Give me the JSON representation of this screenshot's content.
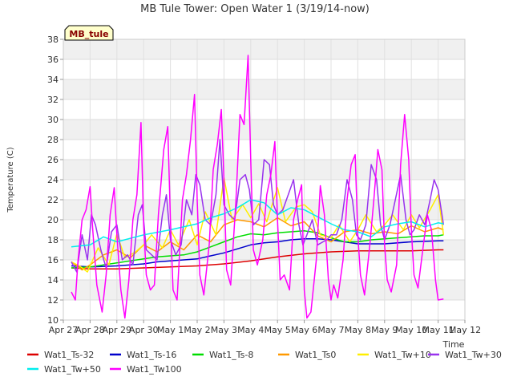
{
  "chart_data": {
    "type": "line",
    "title": "MB Tule Tower: Open Water 1 (3/19/14-now)",
    "site_label": "MB_tule",
    "xlabel": "Time",
    "ylabel": "Temperature (C)",
    "xlim": [
      0,
      15
    ],
    "ylim": [
      10,
      38
    ],
    "x_ticks": [
      {
        "v": 0,
        "label": "Apr 27"
      },
      {
        "v": 1,
        "label": "Apr 28"
      },
      {
        "v": 2,
        "label": "Apr 29"
      },
      {
        "v": 3,
        "label": "Apr 30"
      },
      {
        "v": 4,
        "label": "May 1"
      },
      {
        "v": 5,
        "label": "May 2"
      },
      {
        "v": 6,
        "label": "May 3"
      },
      {
        "v": 7,
        "label": "May 4"
      },
      {
        "v": 8,
        "label": "May 5"
      },
      {
        "v": 9,
        "label": "May 6"
      },
      {
        "v": 10,
        "label": "May 7"
      },
      {
        "v": 11,
        "label": "May 8"
      },
      {
        "v": 12,
        "label": "May 9"
      },
      {
        "v": 13,
        "label": "May 10"
      },
      {
        "v": 14,
        "label": "May 11"
      },
      {
        "v": 15,
        "label": "May 12"
      }
    ],
    "y_ticks": [
      10,
      12,
      14,
      16,
      18,
      20,
      22,
      24,
      26,
      28,
      30,
      32,
      34,
      36,
      38
    ],
    "series": [
      {
        "name": "Wat1_Ts-32",
        "color": "#dd0000",
        "x": [
          0.3,
          1,
          2,
          3,
          4,
          5,
          6,
          7,
          8,
          9,
          10,
          11,
          12,
          13,
          14,
          14.2
        ],
        "y": [
          15.2,
          15.1,
          15.1,
          15.2,
          15.3,
          15.4,
          15.6,
          15.9,
          16.3,
          16.6,
          16.8,
          16.9,
          16.9,
          16.9,
          17.0,
          17.0
        ]
      },
      {
        "name": "Wat1_Ts-16",
        "color": "#0000cc",
        "x": [
          0.3,
          1,
          2,
          3,
          3.5,
          4,
          4.5,
          5,
          5.5,
          6,
          6.5,
          7,
          7.5,
          8,
          8.5,
          9,
          9.5,
          10,
          10.5,
          11,
          12,
          13,
          14,
          14.2
        ],
        "y": [
          15.4,
          15.3,
          15.4,
          15.6,
          15.8,
          15.9,
          16.0,
          16.1,
          16.4,
          16.7,
          17.1,
          17.5,
          17.7,
          17.8,
          18.0,
          18.1,
          18.1,
          18.0,
          17.8,
          17.6,
          17.6,
          17.8,
          17.9,
          17.9
        ]
      },
      {
        "name": "Wat1_Ts-8",
        "color": "#00dd00",
        "x": [
          0.3,
          1,
          1.5,
          2,
          2.5,
          3,
          3.5,
          4,
          4.5,
          5,
          5.5,
          6,
          6.5,
          7,
          7.5,
          8,
          8.5,
          9,
          9.5,
          10,
          10.5,
          11,
          11.5,
          12,
          12.5,
          13,
          13.5,
          14,
          14.2
        ],
        "y": [
          15.2,
          15.3,
          15.5,
          15.7,
          15.9,
          16.1,
          16.3,
          16.4,
          16.5,
          16.8,
          17.3,
          17.8,
          18.3,
          18.6,
          18.5,
          18.7,
          18.8,
          18.9,
          18.7,
          18.2,
          17.8,
          17.8,
          18.0,
          18.1,
          18.2,
          18.3,
          18.4,
          18.4,
          18.5
        ]
      },
      {
        "name": "Wat1_Ts0",
        "color": "#ff9900",
        "x": [
          0.3,
          0.7,
          1,
          1.5,
          2,
          2.5,
          3,
          3.5,
          4,
          4.5,
          5,
          5.5,
          6,
          6.5,
          7,
          7.5,
          8,
          8.5,
          9,
          9.5,
          10,
          10.5,
          11,
          11.5,
          12,
          12.5,
          13,
          13.5,
          14,
          14.2
        ],
        "y": [
          15.8,
          15.0,
          15.5,
          16.5,
          17.0,
          16.2,
          17.5,
          16.8,
          17.8,
          17.0,
          18.5,
          17.8,
          19.5,
          20.0,
          19.8,
          19.3,
          20.2,
          19.4,
          19.8,
          18.4,
          17.8,
          18.8,
          19.0,
          18.6,
          18.8,
          18.6,
          19.4,
          18.8,
          19.2,
          19.0
        ]
      },
      {
        "name": "Wat1_Tw+10",
        "color": "#ffee00",
        "x": [
          0.3,
          0.6,
          0.9,
          1.3,
          1.7,
          2,
          2.3,
          2.7,
          3,
          3.3,
          3.7,
          4,
          4.3,
          4.7,
          5,
          5.3,
          5.7,
          6,
          6.3,
          6.7,
          7,
          7.3,
          7.6,
          8,
          8.3,
          8.7,
          9,
          9.3,
          9.6,
          10,
          10.3,
          10.7,
          11,
          11.3,
          11.7,
          12,
          12.3,
          12.7,
          13,
          13.3,
          13.7,
          14,
          14.2
        ],
        "y": [
          15.8,
          15.4,
          14.8,
          17.2,
          15.5,
          18.6,
          16.2,
          16.8,
          17.5,
          18.5,
          17.2,
          19.0,
          17.5,
          20.0,
          17.5,
          20.8,
          18.5,
          24.2,
          20.0,
          21.5,
          20.2,
          21.6,
          19.8,
          23.2,
          19.8,
          21.3,
          21.5,
          20.8,
          18.5,
          18.2,
          19.5,
          17.8,
          19.0,
          20.5,
          18.8,
          19.5,
          20.5,
          19.0,
          20.5,
          19.2,
          21.0,
          22.5,
          18.5
        ]
      },
      {
        "name": "Wat1_Tw+30",
        "color": "#9933ee",
        "x": [
          0.3,
          0.5,
          0.7,
          0.9,
          1.05,
          1.2,
          1.4,
          1.6,
          1.8,
          2.0,
          2.2,
          2.4,
          2.6,
          2.8,
          2.95,
          3.1,
          3.3,
          3.5,
          3.7,
          3.85,
          4.0,
          4.2,
          4.4,
          4.6,
          4.8,
          4.95,
          5.1,
          5.3,
          5.5,
          5.7,
          5.85,
          6.0,
          6.2,
          6.4,
          6.6,
          6.8,
          6.95,
          7.1,
          7.3,
          7.5,
          7.7,
          7.85,
          8.0,
          8.2,
          8.4,
          8.6,
          8.8,
          8.95,
          9.1,
          9.3,
          9.5,
          9.7,
          9.85,
          10.0,
          10.2,
          10.4,
          10.6,
          10.8,
          10.95,
          11.1,
          11.3,
          11.5,
          11.7,
          11.85,
          12.0,
          12.2,
          12.4,
          12.6,
          12.8,
          12.95,
          13.1,
          13.3,
          13.5,
          13.7,
          13.85,
          14.0,
          14.2
        ],
        "y": [
          15.8,
          14.8,
          18.5,
          16.0,
          20.5,
          19.5,
          17.0,
          15.2,
          18.8,
          19.5,
          16.0,
          16.5,
          15.5,
          20.5,
          21.5,
          17.0,
          16.5,
          16.0,
          20.5,
          22.5,
          18.0,
          16.5,
          17.5,
          22.0,
          20.5,
          24.5,
          23.5,
          20.0,
          19.5,
          22.5,
          28.0,
          21.5,
          20.5,
          20.0,
          24.0,
          24.5,
          23.0,
          19.5,
          20.0,
          26.0,
          25.5,
          21.5,
          20.5,
          21.0,
          22.5,
          24.0,
          19.5,
          17.5,
          18.5,
          20.0,
          17.5,
          17.8,
          18.0,
          18.5,
          18.5,
          20.0,
          24.0,
          22.0,
          18.5,
          18.0,
          19.5,
          25.5,
          24.0,
          19.5,
          18.0,
          19.5,
          22.0,
          24.5,
          20.0,
          18.5,
          19.0,
          20.5,
          19.5,
          22.0,
          24.0,
          23.0,
          19.5
        ]
      },
      {
        "name": "Wat1_Tw+50",
        "color": "#00eeee",
        "x": [
          0.3,
          1,
          1.5,
          2,
          3,
          4,
          5,
          5.5,
          6,
          6.5,
          7,
          7.5,
          8,
          8.5,
          9,
          9.5,
          10,
          10.5,
          11,
          11.5,
          12,
          12.5,
          13,
          13.5,
          14,
          14.2
        ],
        "y": [
          17.3,
          17.5,
          18.3,
          17.8,
          18.5,
          19.0,
          19.6,
          20.2,
          20.6,
          21.2,
          22.0,
          21.7,
          20.5,
          21.2,
          21.0,
          20.3,
          19.6,
          19.0,
          18.8,
          18.3,
          19.3,
          19.6,
          19.8,
          19.3,
          19.7,
          19.6
        ]
      },
      {
        "name": "Wat1_Tw100",
        "color": "#ff00ff",
        "x": [
          0.3,
          0.45,
          0.55,
          0.7,
          0.85,
          1.0,
          1.1,
          1.25,
          1.45,
          1.6,
          1.75,
          1.9,
          2.0,
          2.15,
          2.3,
          2.45,
          2.6,
          2.75,
          2.9,
          3.0,
          3.1,
          3.25,
          3.4,
          3.55,
          3.75,
          3.9,
          4.0,
          4.1,
          4.25,
          4.45,
          4.6,
          4.75,
          4.9,
          5.0,
          5.1,
          5.25,
          5.45,
          5.6,
          5.75,
          5.9,
          6.0,
          6.1,
          6.25,
          6.45,
          6.6,
          6.75,
          6.9,
          7.0,
          7.1,
          7.25,
          7.45,
          7.6,
          7.75,
          7.9,
          8.0,
          8.1,
          8.25,
          8.45,
          8.6,
          8.75,
          8.9,
          9.0,
          9.1,
          9.25,
          9.45,
          9.6,
          9.75,
          9.9,
          10.0,
          10.1,
          10.25,
          10.45,
          10.6,
          10.75,
          10.9,
          11.0,
          11.1,
          11.25,
          11.45,
          11.6,
          11.75,
          11.9,
          12.0,
          12.1,
          12.25,
          12.45,
          12.6,
          12.75,
          12.9,
          13.0,
          13.1,
          13.25,
          13.45,
          13.6,
          13.75,
          13.9,
          14.0,
          14.2
        ],
        "y": [
          12.8,
          12.0,
          16.0,
          20.0,
          21.0,
          23.3,
          19.0,
          13.5,
          10.8,
          14.5,
          20.5,
          23.2,
          18.5,
          13.0,
          10.2,
          14.0,
          20.0,
          22.5,
          29.7,
          19.5,
          14.5,
          13.0,
          13.5,
          20.5,
          27.0,
          29.3,
          20.0,
          13.0,
          12.0,
          22.0,
          24.5,
          28.0,
          32.5,
          22.0,
          14.5,
          12.5,
          17.5,
          25.0,
          27.5,
          31.0,
          24.0,
          15.0,
          13.5,
          22.0,
          30.5,
          29.5,
          36.4,
          26.0,
          17.0,
          15.5,
          18.0,
          22.5,
          24.5,
          27.8,
          20.0,
          14.0,
          14.5,
          13.0,
          20.0,
          22.0,
          23.5,
          13.0,
          10.2,
          10.8,
          16.0,
          23.4,
          20.5,
          14.0,
          12.0,
          13.5,
          12.2,
          16.0,
          22.0,
          25.5,
          26.5,
          18.5,
          14.5,
          12.5,
          17.5,
          22.0,
          27.0,
          25.0,
          17.5,
          14.0,
          12.8,
          15.5,
          25.5,
          30.5,
          26.0,
          19.0,
          14.5,
          13.2,
          17.5,
          20.5,
          19.0,
          14.0,
          12.0,
          12.1
        ]
      }
    ]
  }
}
